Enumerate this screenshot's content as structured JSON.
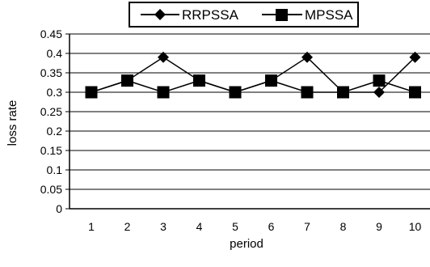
{
  "chart_data": {
    "type": "line",
    "xlabel": "period",
    "ylabel": "loss rate",
    "categories": [
      "1",
      "2",
      "3",
      "4",
      "5",
      "6",
      "7",
      "8",
      "9",
      "10"
    ],
    "ylim": [
      0,
      0.45
    ],
    "yticks": [
      "0",
      "0.05",
      "0.1",
      "0.15",
      "0.2",
      "0.25",
      "0.3",
      "0.35",
      "0.4",
      "0.45"
    ],
    "grid": true,
    "legend_position": "top",
    "series": [
      {
        "name": "RRPSSA",
        "marker": "diamond",
        "color": "#000000",
        "values": [
          0.3,
          0.33,
          0.39,
          0.33,
          0.3,
          0.33,
          0.39,
          0.3,
          0.3,
          0.39
        ]
      },
      {
        "name": "MPSSA",
        "marker": "square",
        "color": "#000000",
        "values": [
          0.3,
          0.33,
          0.3,
          0.33,
          0.3,
          0.33,
          0.3,
          0.3,
          0.33,
          0.3
        ]
      }
    ]
  }
}
